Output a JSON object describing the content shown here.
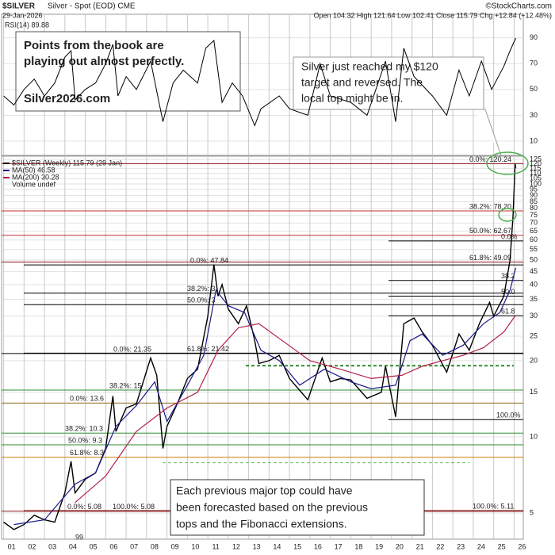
{
  "header": {
    "symbol": "$SILVER",
    "description": "Silver - Spot (EOD) CME",
    "date": "29-Jan-2026",
    "quote": "Open 104.32 High 121.64 Low 102.41 Close 115.79 Chg +12.84 (+12.48%)",
    "credit": "©StockCharts.com"
  },
  "chart_data": [
    {
      "type": "line",
      "title": "RSI(14) 89.88",
      "color": "#000000",
      "x": [
        2001,
        2001.5,
        2002,
        2002.5,
        2003,
        2003.5,
        2004,
        2004.3,
        2004.5,
        2005,
        2005.5,
        2006,
        2006.35,
        2006.6,
        2007,
        2007.5,
        2008.2,
        2008.8,
        2009.3,
        2009.8,
        2010.5,
        2010.9,
        2011.3,
        2011.7,
        2012.2,
        2012.7,
        2013.3,
        2013.6,
        2014.5,
        2015,
        2015.9,
        2016.5,
        2017,
        2018,
        2018.8,
        2019.7,
        2020.2,
        2020.6,
        2021.1,
        2022,
        2022.7,
        2023.3,
        2023.8,
        2024.4,
        2024.9,
        2025.5,
        2025.8,
        2026.08
      ],
      "values": [
        45,
        38,
        50,
        58,
        45,
        55,
        75,
        80,
        42,
        50,
        55,
        70,
        85,
        45,
        60,
        50,
        72,
        25,
        55,
        65,
        55,
        82,
        88,
        40,
        55,
        45,
        22,
        35,
        45,
        35,
        30,
        70,
        45,
        40,
        30,
        72,
        25,
        82,
        60,
        45,
        30,
        65,
        45,
        72,
        50,
        68,
        80,
        89.88
      ],
      "xlim": [
        2000.9,
        2026.45
      ],
      "ylim": [
        -0.5,
        104
      ],
      "yticks": [
        10,
        30,
        50,
        70,
        90
      ],
      "grid": true
    },
    {
      "type": "line",
      "log_scale": true,
      "grid": true,
      "series": [
        {
          "name": "$SILVER (Weekly) 115.79 (29 Jan)",
          "color": "#000000",
          "x": [
            2001,
            2001.5,
            2002,
            2002.5,
            2003,
            2003.5,
            2004,
            2004.3,
            2004.5,
            2005,
            2005.5,
            2006,
            2006.35,
            2006.5,
            2007,
            2007.5,
            2008.2,
            2008.5,
            2008.8,
            2009,
            2009.5,
            2010,
            2010.5,
            2011,
            2011.3,
            2011.5,
            2011.7,
            2012,
            2012.5,
            2012.9,
            2013.3,
            2013.5,
            2014,
            2014.5,
            2015,
            2015.9,
            2016.6,
            2017,
            2017.5,
            2018,
            2018.8,
            2019.5,
            2019.7,
            2020.2,
            2020.6,
            2021.1,
            2021.5,
            2022,
            2022.7,
            2023.3,
            2023.8,
            2024.3,
            2024.8,
            2025,
            2025.5,
            2025.8,
            2025.95,
            2026.05,
            2026.08
          ],
          "values": [
            4.6,
            4.3,
            4.5,
            4.9,
            4.7,
            4.6,
            6,
            8,
            6,
            6.8,
            7.2,
            9,
            14.5,
            10.5,
            13,
            13.5,
            20.5,
            17.5,
            9,
            11,
            13.5,
            17,
            18.5,
            30,
            48,
            36,
            40,
            32,
            28,
            33,
            24,
            19.5,
            20,
            21,
            17,
            14,
            20.5,
            16.5,
            17,
            16.8,
            14.2,
            15,
            19,
            12,
            28,
            29.5,
            26,
            23,
            18,
            25.5,
            22,
            28,
            34,
            30,
            36,
            50,
            75,
            120,
            115.79
          ]
        },
        {
          "name": "MA(50) 46.58",
          "color": "#1a1a8c",
          "x": [
            2001.5,
            2003,
            2004.5,
            2005.5,
            2006.5,
            2007.5,
            2008.4,
            2009,
            2010,
            2010.8,
            2011.4,
            2012,
            2012.8,
            2013.6,
            2014.5,
            2015.5,
            2016.7,
            2018,
            2019,
            2020.2,
            2020.9,
            2021.5,
            2022.5,
            2023.5,
            2024.5,
            2025.3,
            2025.8,
            2026.08
          ],
          "values": [
            4.5,
            4.7,
            6.5,
            7.2,
            11,
            13.3,
            16.5,
            11.5,
            16,
            21,
            38,
            33,
            31,
            22,
            20,
            16,
            18.5,
            16.5,
            15.5,
            16,
            24,
            25.5,
            21,
            23,
            28,
            31,
            38,
            46.58
          ]
        },
        {
          "name": "MA(200) 30.28",
          "color": "#b0204a",
          "x": [
            2004.5,
            2006,
            2007.5,
            2009,
            2010.5,
            2011.5,
            2012.5,
            2013.5,
            2014.5,
            2016,
            2017.5,
            2019,
            2020.5,
            2021.5,
            2022.5,
            2023.5,
            2024.5,
            2025.5,
            2026.08
          ],
          "values": [
            5.5,
            7,
            10.5,
            13,
            15,
            22,
            27,
            28,
            24.5,
            20,
            18.5,
            17,
            17.5,
            19,
            20,
            21,
            22.5,
            26,
            30.28
          ]
        }
      ],
      "volume_label": "Volume undef",
      "xlim": [
        2000.9,
        2026.45
      ],
      "ylim": [
        3.94,
        128.7
      ],
      "yticks": [
        5,
        10,
        15,
        20,
        25,
        30,
        35,
        40,
        45,
        50,
        55,
        60,
        65,
        70,
        75,
        80,
        85,
        90,
        95,
        100,
        105,
        110,
        115,
        120,
        125
      ],
      "xticks": [
        {
          "value": 2001,
          "label": "01"
        },
        {
          "value": 2002,
          "label": "02"
        },
        {
          "value": 2003,
          "label": "03"
        },
        {
          "value": 2004,
          "label": "04"
        },
        {
          "value": 2005,
          "label": "05"
        },
        {
          "value": 2006,
          "label": "06"
        },
        {
          "value": 2007,
          "label": "07"
        },
        {
          "value": 2008,
          "label": "08"
        },
        {
          "value": 2009,
          "label": "09"
        },
        {
          "value": 2010,
          "label": "10"
        },
        {
          "value": 2011,
          "label": "11"
        },
        {
          "value": 2012,
          "label": "12"
        },
        {
          "value": 2013,
          "label": "13"
        },
        {
          "value": 2014,
          "label": "14"
        },
        {
          "value": 2015,
          "label": "15"
        },
        {
          "value": 2016,
          "label": "16"
        },
        {
          "value": 2017,
          "label": "17"
        },
        {
          "value": 2018,
          "label": "18"
        },
        {
          "value": 2019,
          "label": "19"
        },
        {
          "value": 2020,
          "label": "20"
        },
        {
          "value": 2021,
          "label": "21"
        },
        {
          "value": 2022,
          "label": "22"
        },
        {
          "value": 2023,
          "label": "23"
        },
        {
          "value": 2024,
          "label": "24"
        },
        {
          "value": 2025,
          "label": "25"
        },
        {
          "value": 2026,
          "label": "26"
        }
      ],
      "levels": [
        {
          "value": 120.24,
          "label": "0.0%: 120.24",
          "color": "#8b1a1a"
        },
        {
          "value": 78.2,
          "label": "38.2%: 78.20",
          "color": "#c03030"
        },
        {
          "value": 62.67,
          "label": "50.0%: 62.67",
          "color": "#c03030"
        },
        {
          "value": 59.5,
          "label": "0.0%",
          "color": "#000000"
        },
        {
          "value": 49.09,
          "label": "61.8%: 49.09",
          "color": "#8b1a1a"
        },
        {
          "value": 47.84,
          "label": "0.0%: 47.84",
          "color": "#000000"
        },
        {
          "value": 41.5,
          "label": "38.2",
          "color": "#000000"
        },
        {
          "value": 36,
          "label": "50.0",
          "color": "#000000"
        },
        {
          "value": 30.1,
          "label": "61.8",
          "color": "#000000"
        },
        {
          "value": 11.7,
          "label": "100.0%",
          "color": "#000000"
        },
        {
          "value": 5.11,
          "label": "100.0%: 5.11",
          "color": "#8b1a1a"
        },
        {
          "value": 37,
          "label": "38.2%: 3",
          "color": "#000000"
        },
        {
          "value": 33.3,
          "label": "50.0%: 3",
          "color": "#000000"
        },
        {
          "value": 21.42,
          "label": "61.8%: 21.42",
          "color": "#000000"
        },
        {
          "value": 21.35,
          "label": "0.0%: 21.35",
          "color": "#000000"
        },
        {
          "value": 15.3,
          "label": "38.2%: 15",
          "color": "#2e8b2e"
        },
        {
          "value": 13.6,
          "label": "0.0%: 13.6",
          "color": "#8b6914"
        },
        {
          "value": 10.35,
          "label": "38.2%: 10.3",
          "color": "#2e8b2e"
        },
        {
          "value": 9.3,
          "label": "50.0%: 9.3",
          "color": "#2e8b2e"
        },
        {
          "value": 8.3,
          "label": "61.8%: 8.3",
          "color": "#cc7a00"
        },
        {
          "value": 5.08,
          "label": "0.0%: 5.08",
          "color": "#8b1a1a"
        },
        {
          "value": 5.08,
          "label": "100.0%: 5.08",
          "color": "#8b1a1a"
        }
      ],
      "dashed_levels": [
        {
          "value": 19.1,
          "color": "#2e8b2e"
        },
        {
          "value": 7.9,
          "color": "#66bb66"
        }
      ]
    }
  ],
  "annotations": {
    "book": [
      "Points from the book are",
      "playing out almost perfectly."
    ],
    "site": "Silver2026.com",
    "target": [
      "Silver just reached my $120",
      "target and reversed. The",
      "local top might be in."
    ],
    "forecast": [
      "Each previous major top could have",
      "been forecasted based on the previous",
      "tops and the Fibonacci extensions."
    ],
    "low_label": "99"
  }
}
